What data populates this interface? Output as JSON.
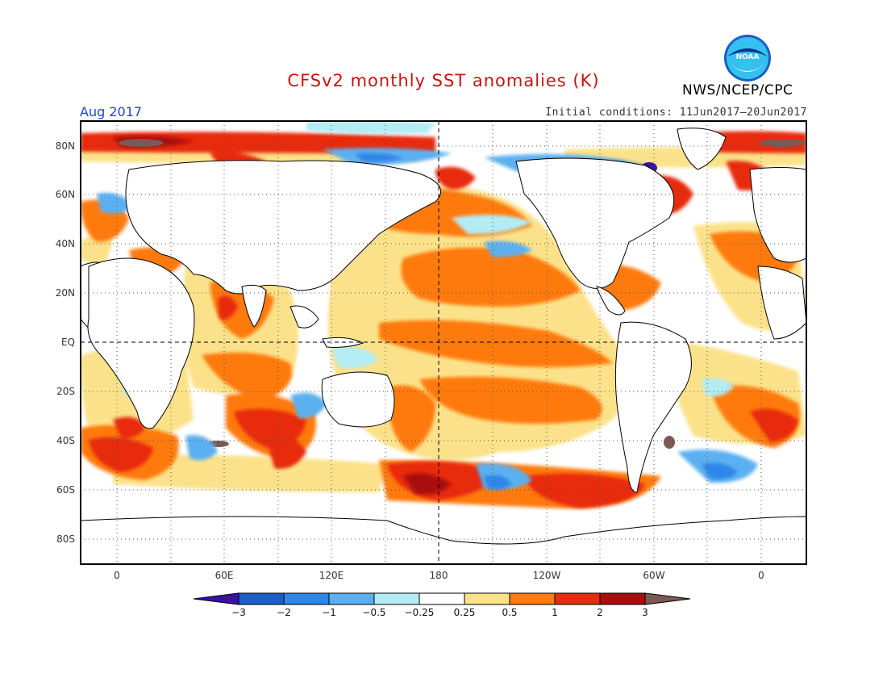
{
  "header": {
    "title": "CFSv2 monthly SST anomalies (K)",
    "valid_month": "Aug 2017",
    "initial_conditions": "Initial conditions: 11Jun2017–20Jun2017",
    "agency": "NWS/NCEP/CPC",
    "logo_text": "NOAA"
  },
  "map": {
    "projection": "cylindrical equidistant",
    "lat_labels": [
      "80N",
      "60N",
      "40N",
      "20N",
      "EQ",
      "20S",
      "40S",
      "60S",
      "80S"
    ],
    "lon_labels": [
      "0",
      "60E",
      "120E",
      "180",
      "120W",
      "60W",
      "0"
    ],
    "dashed_reference_lines": [
      "EQ",
      "180"
    ],
    "grid": "dotted every 20° lat / 30° lon"
  },
  "colorbar": {
    "labels": [
      "−3",
      "−2",
      "−1",
      "−0.5",
      "−0.25",
      "0.25",
      "0.5",
      "1",
      "2",
      "3"
    ],
    "colors": [
      "#3a10a8",
      "#1a5ec8",
      "#2e86e8",
      "#5cb0f0",
      "#b4ecf4",
      "#ffffff",
      "#fbe28a",
      "#ff7a10",
      "#e82c10",
      "#a80e0e",
      "#7a5a52"
    ]
  }
}
